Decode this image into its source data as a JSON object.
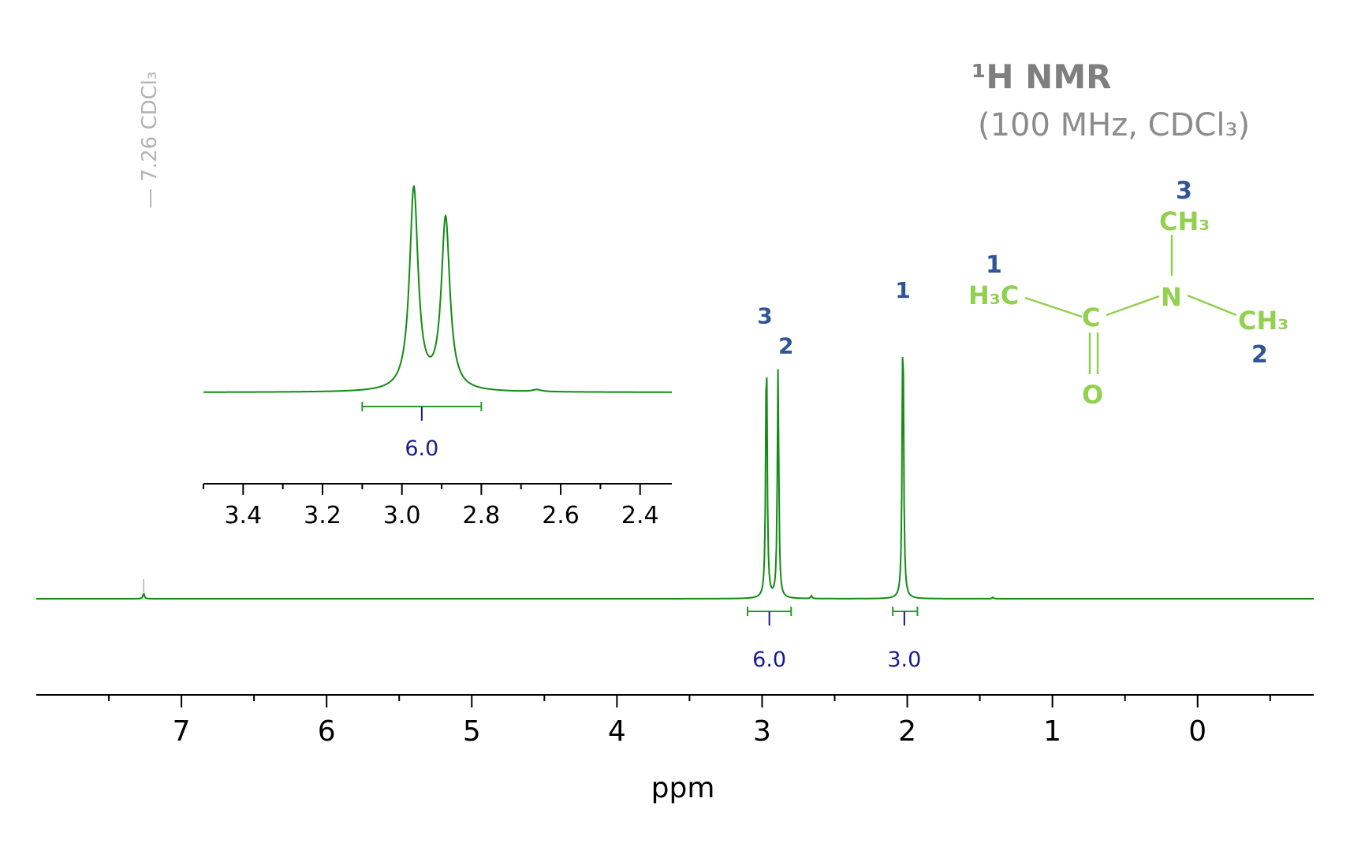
{
  "title": {
    "main": "¹H NMR",
    "sub": "(100 MHz, CDCl₃)"
  },
  "colors": {
    "spectrum": "#128c12",
    "integral": "#2a9a2a",
    "integral_label": "#1a1a8c",
    "peak_label": "#2f5597",
    "molecule": "#92d050",
    "title": "#7f7f7f",
    "solvent": "#b3b3b3"
  },
  "chart_data": [
    {
      "type": "line",
      "xlabel": "ppm",
      "xlim": [
        8.0,
        -0.8
      ],
      "reversed_x": true,
      "x_ticks": [
        7,
        6,
        5,
        4,
        3,
        2,
        1,
        0
      ],
      "x_tick_labels": [
        "7",
        "6",
        "5",
        "4",
        "3",
        "2",
        "1",
        "0"
      ],
      "peaks": [
        {
          "ppm": 7.26,
          "height": 0.02,
          "label": ""
        },
        {
          "ppm": 2.97,
          "height": 0.91,
          "label": "3"
        },
        {
          "ppm": 2.89,
          "height": 0.81,
          "label": "2"
        },
        {
          "ppm": 2.03,
          "height": 1.0,
          "label": "1"
        },
        {
          "ppm": 2.66,
          "height": 0.01,
          "label": ""
        },
        {
          "ppm": 1.41,
          "height": 0.005,
          "label": ""
        }
      ],
      "integrals": [
        {
          "from": 3.1,
          "to": 2.8,
          "center": 2.95,
          "value": "6.0"
        },
        {
          "from": 2.1,
          "to": 1.93,
          "center": 2.02,
          "value": "3.0"
        }
      ],
      "annotations": [
        {
          "ppm": 7.26,
          "text": "— 7.26 CDCl₃"
        }
      ]
    },
    {
      "type": "line",
      "inset": true,
      "xlim": [
        3.5,
        2.32
      ],
      "reversed_x": true,
      "x_ticks": [
        3.4,
        3.2,
        3.0,
        2.8,
        2.6,
        2.4
      ],
      "x_tick_labels": [
        "3.4",
        "3.2",
        "3.0",
        "2.8",
        "2.6",
        "2.4"
      ],
      "peaks": [
        {
          "ppm": 2.97,
          "height": 1.0
        },
        {
          "ppm": 2.89,
          "height": 0.85
        },
        {
          "ppm": 2.66,
          "height": 0.01
        }
      ],
      "integrals": [
        {
          "from": 3.1,
          "to": 2.8,
          "center": 2.95,
          "value": "6.0"
        }
      ]
    }
  ],
  "molecule": {
    "atoms": {
      "h3c_left": "H₃C",
      "carbon": "C",
      "nitrogen": "N",
      "ch3_top": "CH₃",
      "ch3_right": "CH₃",
      "oxygen": "O"
    },
    "labels": {
      "left": "1",
      "top": "3",
      "right": "2"
    }
  }
}
